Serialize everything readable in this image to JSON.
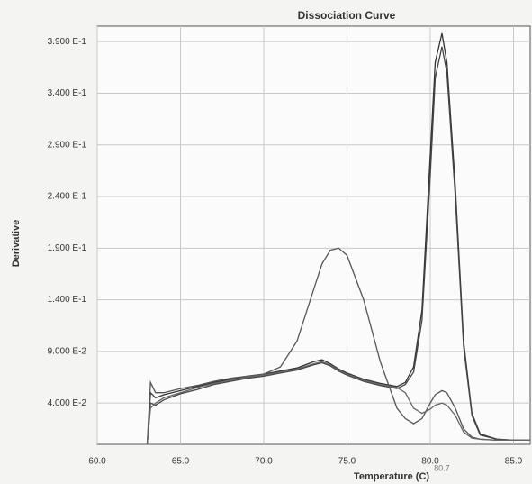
{
  "chart_data": {
    "type": "line",
    "title": "Dissociation Curve",
    "xlabel": "Temperature (C)",
    "ylabel": "Derivative",
    "annotation": {
      "x": 80.7,
      "label": "80.7"
    },
    "x": [
      63,
      63.2,
      63.5,
      64,
      65,
      66,
      67,
      68,
      69,
      70,
      71,
      72,
      73,
      73.5,
      74,
      74.5,
      75,
      76,
      77,
      78,
      78.5,
      79,
      79.5,
      80,
      80.3,
      80.7,
      81,
      81.5,
      82,
      82.5,
      83,
      84,
      85,
      86
    ],
    "series": [
      {
        "color": "#333333",
        "values": [
          0.0,
          0.05,
          0.045,
          0.048,
          0.052,
          0.056,
          0.06,
          0.063,
          0.066,
          0.068,
          0.071,
          0.074,
          0.08,
          0.082,
          0.078,
          0.073,
          0.069,
          0.063,
          0.059,
          0.056,
          0.06,
          0.075,
          0.13,
          0.28,
          0.37,
          0.398,
          0.37,
          0.25,
          0.1,
          0.03,
          0.01,
          0.005,
          0.004,
          0.004
        ]
      },
      {
        "color": "#444444",
        "values": [
          0.0,
          0.04,
          0.038,
          0.043,
          0.049,
          0.053,
          0.058,
          0.061,
          0.064,
          0.066,
          0.069,
          0.072,
          0.077,
          0.079,
          0.076,
          0.071,
          0.067,
          0.061,
          0.057,
          0.054,
          0.058,
          0.07,
          0.12,
          0.26,
          0.355,
          0.385,
          0.36,
          0.24,
          0.095,
          0.028,
          0.009,
          0.005,
          0.004,
          0.004
        ]
      },
      {
        "color": "#555555",
        "values": [
          0.0,
          0.06,
          0.05,
          0.05,
          0.054,
          0.057,
          0.061,
          0.064,
          0.066,
          0.068,
          0.075,
          0.1,
          0.15,
          0.175,
          0.188,
          0.19,
          0.183,
          0.14,
          0.08,
          0.035,
          0.025,
          0.02,
          0.025,
          0.04,
          0.048,
          0.052,
          0.05,
          0.035,
          0.015,
          0.007,
          0.005,
          0.004,
          0.004,
          0.004
        ]
      },
      {
        "color": "#666666",
        "values": [
          0.0,
          0.035,
          0.04,
          0.045,
          0.05,
          0.055,
          0.059,
          0.062,
          0.065,
          0.067,
          0.07,
          0.073,
          0.078,
          0.08,
          0.077,
          0.072,
          0.068,
          0.062,
          0.058,
          0.055,
          0.05,
          0.035,
          0.03,
          0.034,
          0.038,
          0.04,
          0.038,
          0.028,
          0.012,
          0.006,
          0.005,
          0.004,
          0.004,
          0.004
        ]
      }
    ],
    "xlim": [
      60,
      86
    ],
    "ylim": [
      0,
      0.405
    ],
    "xticks": [
      {
        "value": 60,
        "label": "60.0"
      },
      {
        "value": 65,
        "label": "65.0"
      },
      {
        "value": 70,
        "label": "70.0"
      },
      {
        "value": 75,
        "label": "75.0"
      },
      {
        "value": 80,
        "label": "80.0"
      },
      {
        "value": 85,
        "label": "85.0"
      }
    ],
    "yticks": [
      {
        "value": 0.04,
        "label": "4.000 E-2"
      },
      {
        "value": 0.09,
        "label": "9.000 E-2"
      },
      {
        "value": 0.14,
        "label": "1.400 E-1"
      },
      {
        "value": 0.19,
        "label": "1.900 E-1"
      },
      {
        "value": 0.24,
        "label": "2.400 E-1"
      },
      {
        "value": 0.29,
        "label": "2.900 E-1"
      },
      {
        "value": 0.34,
        "label": "3.400 E-1"
      },
      {
        "value": 0.39,
        "label": "3.900 E-1"
      }
    ],
    "grid": true
  }
}
